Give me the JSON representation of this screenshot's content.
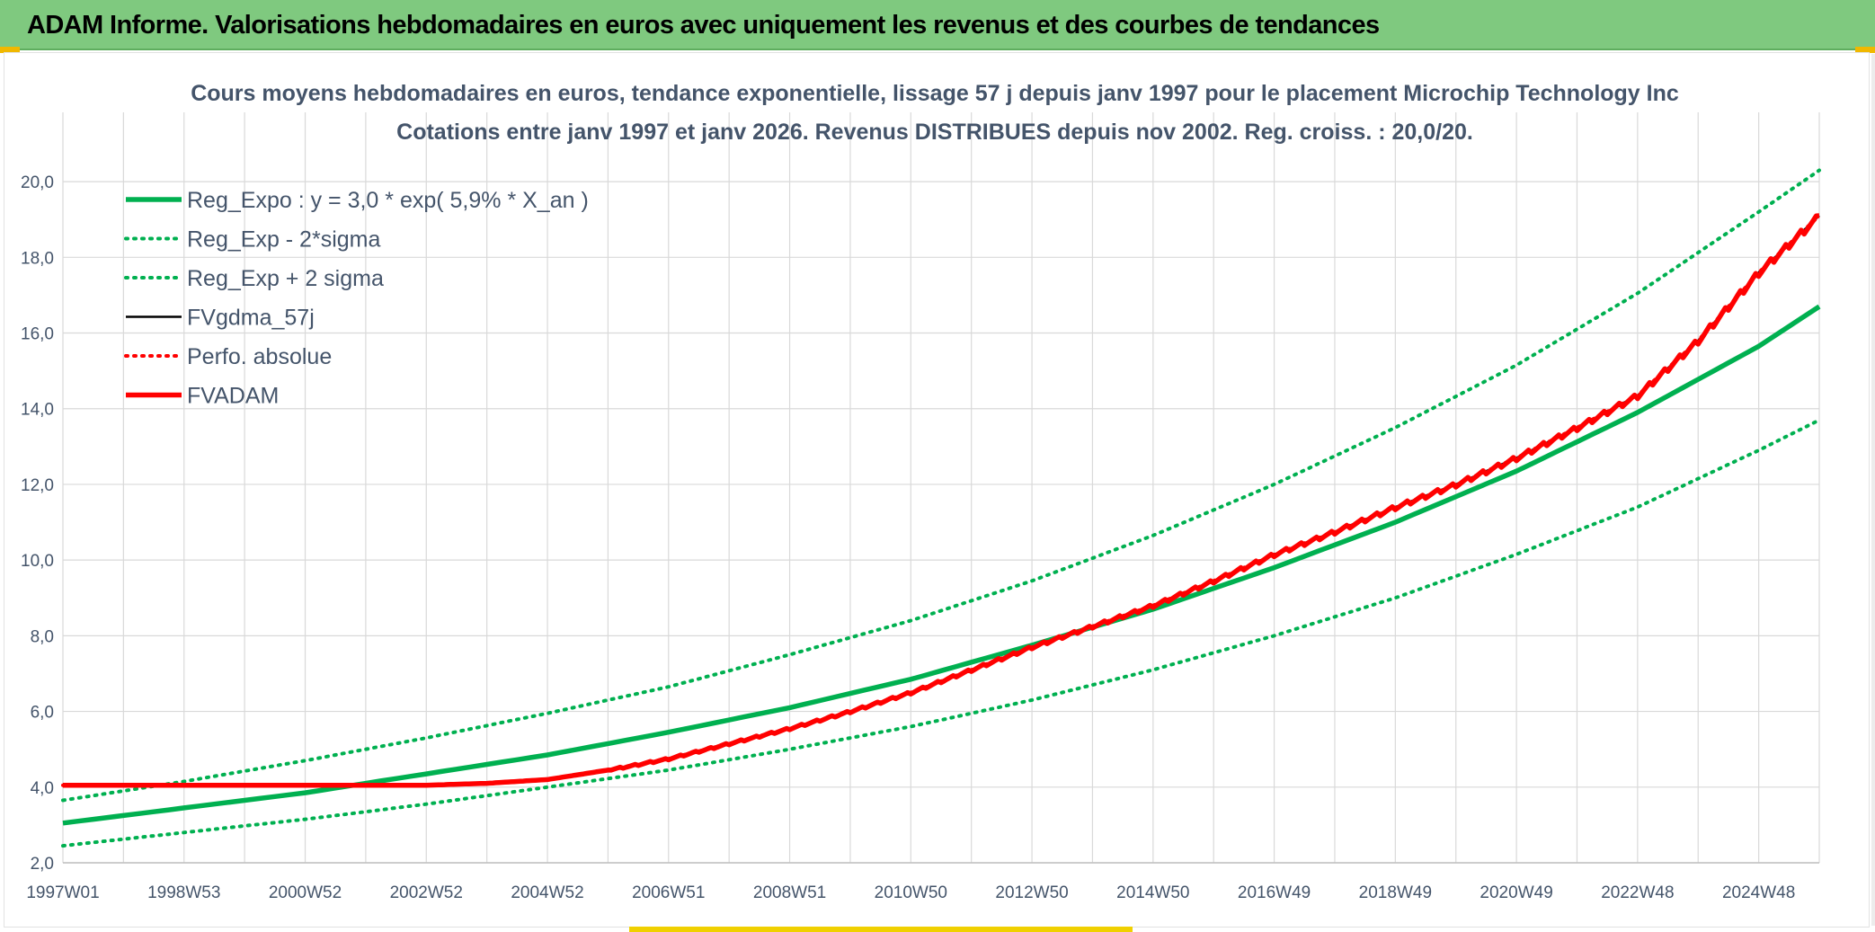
{
  "banner": {
    "title": "ADAM Informe. Valorisations hebdomadaires en euros avec uniquement les revenus et des courbes de tendances"
  },
  "chart_data": {
    "type": "line",
    "title": "Cours moyens hebdomadaires en euros, tendance exponentielle, lissage 57 j depuis janv 1997 pour le placement Microchip Technology Inc",
    "subtitle": "Cotations entre janv 1997 et janv 2026. Revenus DISTRIBUES depuis nov 2002. Reg. croiss. : 20,0/20.",
    "xlabel": "",
    "ylabel": "",
    "x_range": [
      1997.0,
      2026.0
    ],
    "ylim": [
      2.0,
      21.0
    ],
    "y_ticks": [
      2,
      4,
      6,
      8,
      10,
      12,
      14,
      16,
      18,
      20
    ],
    "y_tick_labels": [
      "2,0",
      "4,0",
      "6,0",
      "8,0",
      "10,0",
      "12,0",
      "14,0",
      "16,0",
      "18,0",
      "20,0"
    ],
    "x_ticks": [
      1997.0,
      1999.0,
      2001.0,
      2003.0,
      2005.0,
      2007.0,
      2009.0,
      2011.0,
      2013.0,
      2015.0,
      2017.0,
      2019.0,
      2021.0,
      2023.0,
      2025.0
    ],
    "x_tick_labels": [
      "1997W01",
      "1998W53",
      "2000W52",
      "2002W52",
      "2004W52",
      "2006W51",
      "2008W51",
      "2010W50",
      "2012W50",
      "2014W50",
      "2016W49",
      "2018W49",
      "2020W49",
      "2022W48",
      "2024W48"
    ],
    "grid": true,
    "legend_position": "top-left",
    "series": [
      {
        "name": "Reg_Expo : y = 3,0 * exp( 5,9% *  X_an )",
        "color": "#00b050",
        "style": "solid-thick",
        "x": [
          1997,
          1999,
          2001,
          2003,
          2005,
          2007,
          2009,
          2011,
          2013,
          2015,
          2017,
          2019,
          2021,
          2023,
          2025,
          2026
        ],
        "values": [
          3.05,
          3.45,
          3.85,
          4.35,
          4.85,
          5.45,
          6.1,
          6.85,
          7.75,
          8.7,
          9.8,
          11.0,
          12.35,
          13.9,
          15.65,
          16.7
        ]
      },
      {
        "name": "Reg_Exp - 2*sigma",
        "color": "#00b050",
        "style": "dotted",
        "x": [
          1997,
          1999,
          2001,
          2003,
          2005,
          2007,
          2009,
          2011,
          2013,
          2015,
          2017,
          2019,
          2021,
          2023,
          2025,
          2026
        ],
        "values": [
          2.45,
          2.8,
          3.15,
          3.55,
          4.0,
          4.45,
          5.0,
          5.6,
          6.3,
          7.1,
          8.0,
          9.0,
          10.15,
          11.4,
          12.9,
          13.7
        ]
      },
      {
        "name": "Reg_Exp + 2 sigma",
        "color": "#00b050",
        "style": "dotted",
        "x": [
          1997,
          1999,
          2001,
          2003,
          2005,
          2007,
          2009,
          2011,
          2013,
          2015,
          2017,
          2019,
          2021,
          2023,
          2025,
          2026
        ],
        "values": [
          3.65,
          4.15,
          4.7,
          5.3,
          5.95,
          6.65,
          7.5,
          8.4,
          9.45,
          10.65,
          12.0,
          13.5,
          15.15,
          17.05,
          19.2,
          20.3
        ]
      },
      {
        "name": "FVgdma_57j",
        "color": "#000000",
        "style": "solid",
        "x": [
          1997,
          2003,
          2004,
          2005,
          2006,
          2007,
          2008,
          2009,
          2010,
          2011,
          2012,
          2013,
          2014,
          2015,
          2016,
          2017,
          2018,
          2019,
          2020,
          2021,
          2022,
          2023,
          2024,
          2025,
          2026
        ],
        "values": [
          4.05,
          4.05,
          4.1,
          4.2,
          4.45,
          4.75,
          5.15,
          5.55,
          6.0,
          6.5,
          7.1,
          7.7,
          8.25,
          8.8,
          9.45,
          10.15,
          10.75,
          11.4,
          12.0,
          12.7,
          13.5,
          14.35,
          15.8,
          17.6,
          19.1
        ]
      },
      {
        "name": "Perfo. absolue",
        "color": "#ff0000",
        "style": "dotted",
        "x": [
          1997,
          2003,
          2004,
          2005,
          2006,
          2007,
          2008,
          2009,
          2010,
          2011,
          2012,
          2013,
          2014,
          2015,
          2016,
          2017,
          2018,
          2019,
          2020,
          2021,
          2022,
          2023,
          2024,
          2025,
          2026
        ],
        "values": [
          4.05,
          4.05,
          4.1,
          4.2,
          4.45,
          4.75,
          5.15,
          5.55,
          6.0,
          6.5,
          7.1,
          7.7,
          8.25,
          8.8,
          9.45,
          10.15,
          10.75,
          11.4,
          12.0,
          12.7,
          13.5,
          14.35,
          15.8,
          17.6,
          19.1
        ]
      },
      {
        "name": "FVADAM",
        "color": "#ff0000",
        "style": "solid-thick-stepped",
        "x": [
          1997,
          2003,
          2004,
          2005,
          2006,
          2007,
          2008,
          2009,
          2010,
          2011,
          2012,
          2013,
          2014,
          2015,
          2016,
          2017,
          2018,
          2019,
          2020,
          2021,
          2022,
          2023,
          2024,
          2025,
          2026
        ],
        "values": [
          4.05,
          4.05,
          4.1,
          4.2,
          4.45,
          4.75,
          5.15,
          5.55,
          6.0,
          6.5,
          7.1,
          7.7,
          8.25,
          8.8,
          9.45,
          10.15,
          10.75,
          11.4,
          12.0,
          12.7,
          13.5,
          14.35,
          15.8,
          17.6,
          19.1
        ]
      }
    ]
  }
}
